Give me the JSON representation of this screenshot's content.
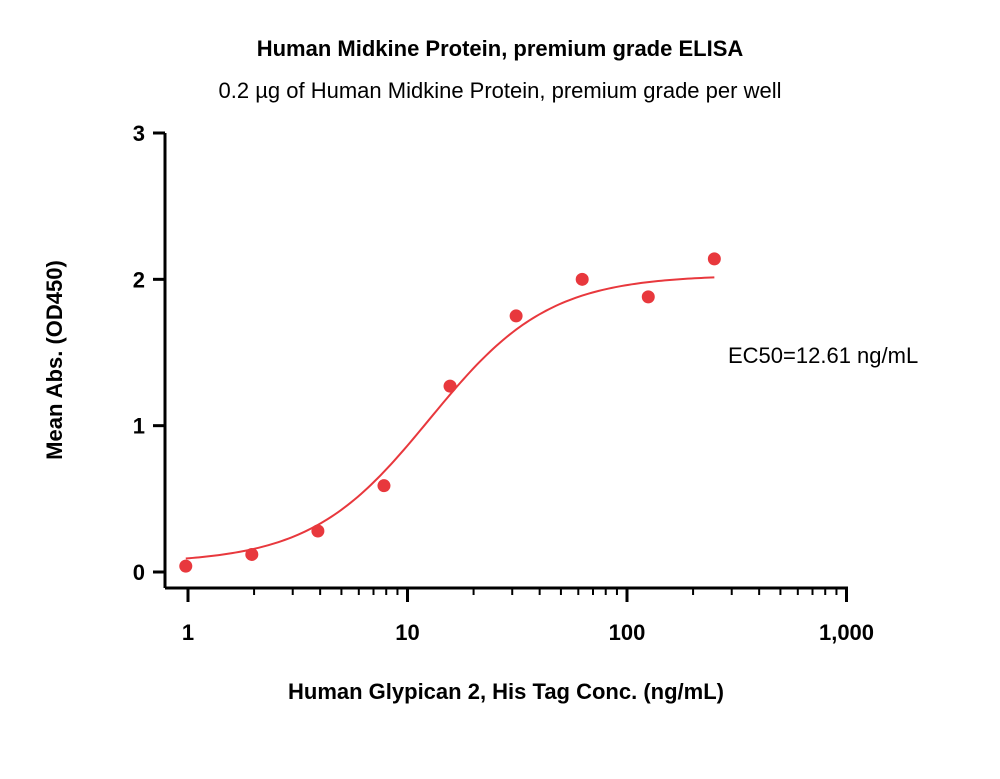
{
  "chart_data": {
    "type": "scatter",
    "title": "Human Midkine Protein, premium grade ELISA",
    "subtitle": "0.2 µg of Human Midkine Protein, premium grade per well",
    "xlabel": "Human Glypican 2, His Tag Conc. (ng/mL)",
    "ylabel": "Mean Abs. (OD450)",
    "x_scale": "log",
    "xlim": [
      0.8,
      1000
    ],
    "ylim": [
      0,
      3
    ],
    "x_ticks": [
      1,
      10,
      100,
      1000
    ],
    "x_tick_labels": [
      "1",
      "10",
      "100",
      "1,000"
    ],
    "y_ticks": [
      0,
      1,
      2,
      3
    ],
    "y_tick_labels": [
      "0",
      "1",
      "2",
      "3"
    ],
    "grid": false,
    "legend": "none",
    "series": [
      {
        "x": [
          0.977,
          1.953,
          3.906,
          7.813,
          15.625,
          31.25,
          62.5,
          125,
          250
        ],
        "y": [
          0.04,
          0.12,
          0.28,
          0.59,
          1.27,
          1.75,
          2.0,
          1.88,
          2.14
        ],
        "color": "#e8383d"
      }
    ],
    "fit_curve": {
      "model": "4PL",
      "bottom": 0.06,
      "top": 2.03,
      "ec50": 12.61,
      "hill": 1.6,
      "x_range": [
        0.977,
        250
      ],
      "color": "#e8383d"
    },
    "annotations": [
      "EC50=12.61 ng/mL"
    ]
  }
}
